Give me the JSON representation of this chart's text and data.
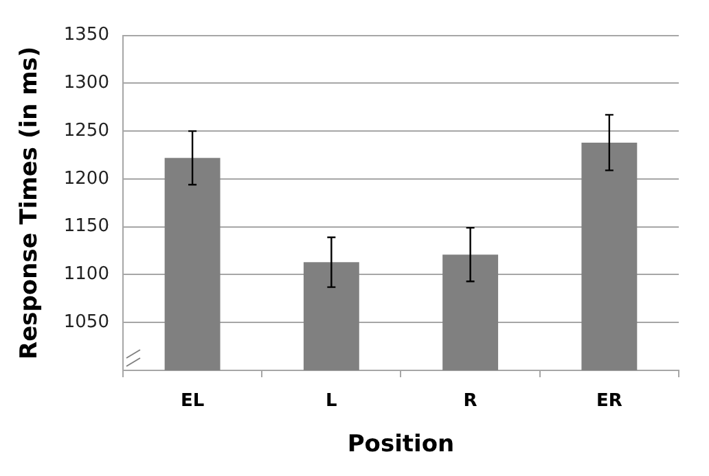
{
  "chart_data": {
    "type": "bar",
    "xlabel": "Position",
    "ylabel": "Response Times (in ms)",
    "categories": [
      "EL",
      "L",
      "R",
      "ER"
    ],
    "values": [
      1222,
      1113,
      1121,
      1238
    ],
    "errors": [
      28,
      26,
      28,
      29
    ],
    "color": "#808080",
    "ylim": [
      1000,
      1350
    ],
    "yticks": [
      1050,
      1100,
      1150,
      1200,
      1250,
      1300,
      1350
    ],
    "grid": "y",
    "legend": false
  }
}
